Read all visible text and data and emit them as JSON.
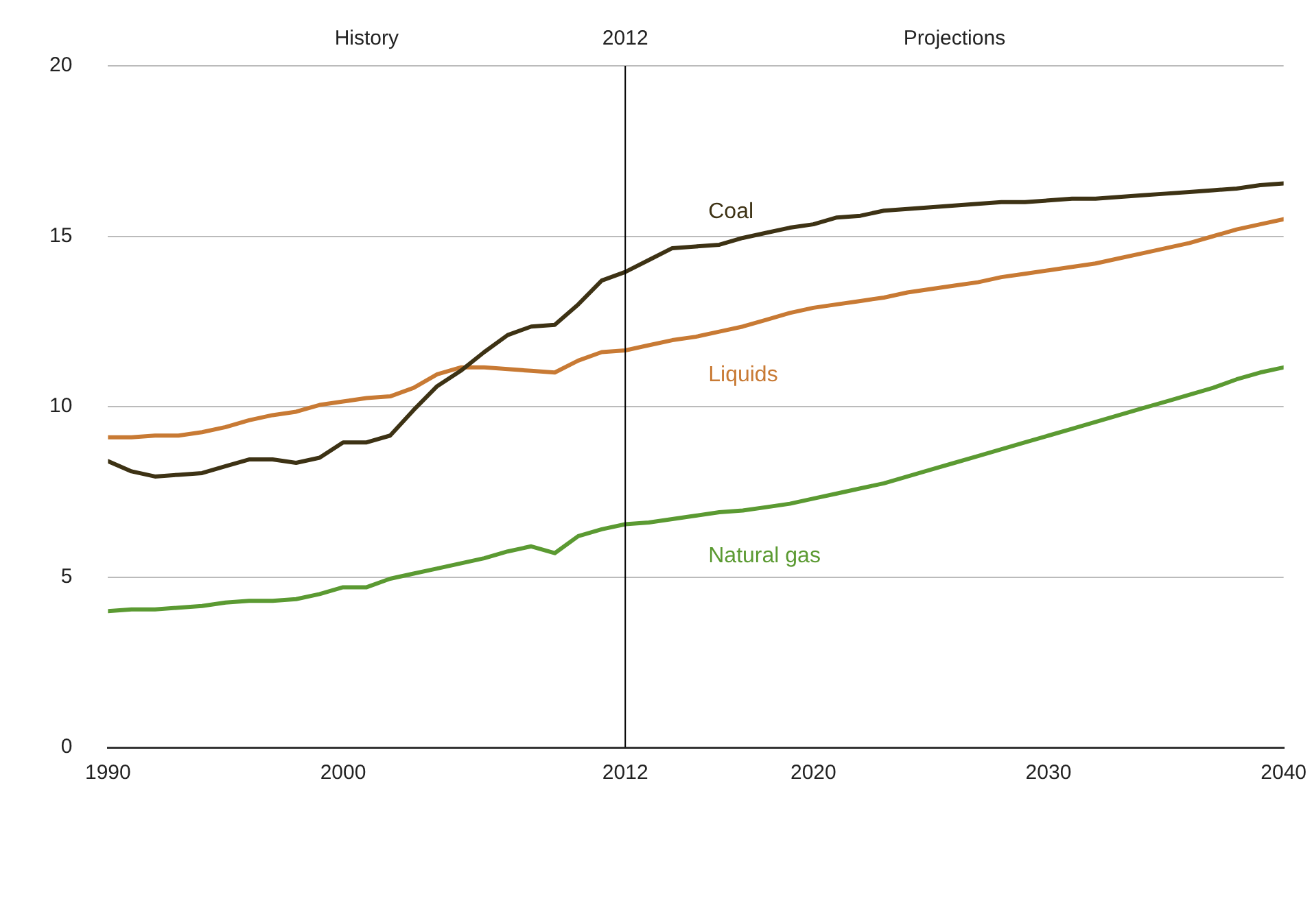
{
  "chart_data": {
    "type": "line",
    "x": [
      1990,
      1991,
      1992,
      1993,
      1994,
      1995,
      1996,
      1997,
      1998,
      1999,
      2000,
      2001,
      2002,
      2003,
      2004,
      2005,
      2006,
      2007,
      2008,
      2009,
      2010,
      2011,
      2012,
      2013,
      2014,
      2015,
      2016,
      2017,
      2018,
      2019,
      2020,
      2021,
      2022,
      2023,
      2024,
      2025,
      2026,
      2027,
      2028,
      2029,
      2030,
      2031,
      2032,
      2033,
      2034,
      2035,
      2036,
      2037,
      2038,
      2039,
      2040
    ],
    "series": [
      {
        "name": "Coal",
        "color": "#3d3214",
        "values": [
          8.4,
          8.1,
          7.95,
          8.0,
          8.05,
          8.25,
          8.45,
          8.45,
          8.35,
          8.5,
          8.95,
          8.95,
          9.15,
          9.9,
          10.6,
          11.05,
          11.6,
          12.1,
          12.35,
          12.4,
          13.0,
          13.7,
          13.95,
          14.3,
          14.65,
          14.7,
          14.75,
          14.95,
          15.1,
          15.25,
          15.35,
          15.55,
          15.6,
          15.75,
          15.8,
          15.85,
          15.9,
          15.95,
          16.0,
          16.0,
          16.05,
          16.1,
          16.1,
          16.15,
          16.2,
          16.25,
          16.3,
          16.35,
          16.4,
          16.5,
          16.55
        ]
      },
      {
        "name": "Liquids",
        "color": "#c87a34",
        "values": [
          9.1,
          9.1,
          9.15,
          9.15,
          9.25,
          9.4,
          9.6,
          9.75,
          9.85,
          10.05,
          10.15,
          10.25,
          10.3,
          10.55,
          10.95,
          11.15,
          11.15,
          11.1,
          11.05,
          11.0,
          11.35,
          11.6,
          11.65,
          11.8,
          11.95,
          12.05,
          12.2,
          12.35,
          12.55,
          12.75,
          12.9,
          13.0,
          13.1,
          13.2,
          13.35,
          13.45,
          13.55,
          13.65,
          13.8,
          13.9,
          14.0,
          14.1,
          14.2,
          14.35,
          14.5,
          14.65,
          14.8,
          15.0,
          15.2,
          15.35,
          15.5
        ]
      },
      {
        "name": "Natural gas",
        "color": "#5b9a32",
        "values": [
          4.0,
          4.05,
          4.05,
          4.1,
          4.15,
          4.25,
          4.3,
          4.3,
          4.35,
          4.5,
          4.7,
          4.7,
          4.95,
          5.1,
          5.25,
          5.4,
          5.55,
          5.75,
          5.9,
          5.7,
          6.2,
          6.4,
          6.55,
          6.6,
          6.7,
          6.8,
          6.9,
          6.95,
          7.05,
          7.15,
          7.3,
          7.45,
          7.6,
          7.75,
          7.95,
          8.15,
          8.35,
          8.55,
          8.75,
          8.95,
          9.15,
          9.35,
          9.55,
          9.75,
          9.95,
          10.15,
          10.35,
          10.55,
          10.8,
          11.0,
          11.15
        ]
      }
    ],
    "xlim": [
      1990,
      2040
    ],
    "xticks": [
      1990,
      2000,
      2012,
      2020,
      2030,
      2040
    ],
    "ylim": [
      0,
      20
    ],
    "yticks": [
      0,
      5,
      10,
      15,
      20
    ],
    "ref_lines": [
      {
        "axis": "x",
        "value": 2012,
        "label": "2012",
        "color": "#000000"
      }
    ],
    "annotations": [
      "History",
      "Projections"
    ],
    "grid": "y",
    "legend": false,
    "marker": "none",
    "line_style": "solid"
  }
}
